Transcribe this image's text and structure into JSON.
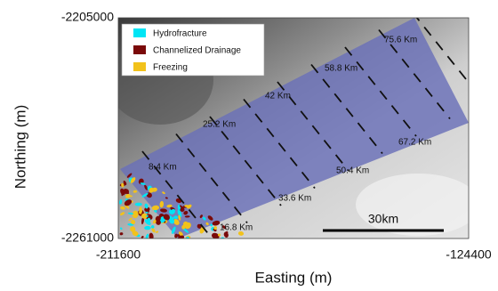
{
  "axes": {
    "x_label": "Easting (m)",
    "y_label": "Northing (m)",
    "x_ticks": [
      -211600,
      -124400
    ],
    "y_ticks": [
      -2205000,
      -2261000
    ]
  },
  "legend": [
    {
      "label": "Hydrofracture",
      "color": "#00e5f5"
    },
    {
      "label": "Channelized Drainage",
      "color": "#7a0a0a"
    },
    {
      "label": "Freezing",
      "color": "#f2c21b"
    }
  ],
  "distance_labels": [
    "75.6 Km",
    "58.8 Km",
    "42 Km",
    "25.2 Km",
    "8.4 Km",
    "16.8 Km",
    "33.6 Km",
    "50.4 Km",
    "67.2 Km"
  ],
  "scale_bar": "30km"
}
